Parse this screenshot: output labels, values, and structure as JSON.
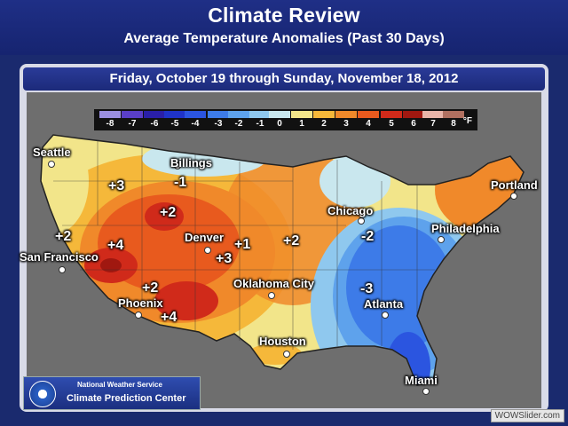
{
  "header": {
    "title": "Climate Review",
    "subtitle": "Average Temperature Anomalies (Past 30 Days)"
  },
  "date_range": "Friday, October 19 through Sunday, November 18, 2012",
  "legend": {
    "unit": "°F",
    "entries": [
      {
        "label": "-8",
        "color": "#9b8fe0"
      },
      {
        "label": "-7",
        "color": "#5a3fc8"
      },
      {
        "label": "-6",
        "color": "#2a1fa8"
      },
      {
        "label": "-5",
        "color": "#1f33c8"
      },
      {
        "label": "-4",
        "color": "#2b55e0"
      },
      {
        "label": "-3",
        "color": "#3d7be8"
      },
      {
        "label": "-2",
        "color": "#5ea2ec"
      },
      {
        "label": "-1",
        "color": "#8fc8ee"
      },
      {
        "label": "0",
        "color": "#c9e7ee"
      },
      {
        "label": "1",
        "color": "#f2e58a"
      },
      {
        "label": "2",
        "color": "#f5b83a"
      },
      {
        "label": "3",
        "color": "#f0892a"
      },
      {
        "label": "4",
        "color": "#e85a1e"
      },
      {
        "label": "5",
        "color": "#d02a1a"
      },
      {
        "label": "6",
        "color": "#a01810"
      },
      {
        "label": "7",
        "color": "#e8b4a8"
      },
      {
        "label": "8",
        "color": "#b07060"
      }
    ]
  },
  "cities": [
    {
      "name": "Seattle"
    },
    {
      "name": "Billings"
    },
    {
      "name": "Portland"
    },
    {
      "name": "Chicago"
    },
    {
      "name": "Philadelphia"
    },
    {
      "name": "San Francisco"
    },
    {
      "name": "Denver"
    },
    {
      "name": "Oklahoma City"
    },
    {
      "name": "Phoenix"
    },
    {
      "name": "Atlanta"
    },
    {
      "name": "Houston"
    },
    {
      "name": "Miami"
    }
  ],
  "anomalies": [
    "+3",
    "-1",
    "+2",
    "+2",
    "+4",
    "+1",
    "+3",
    "+2",
    "-2",
    "+2",
    "+4",
    "-3"
  ],
  "footer": {
    "agency": "National Weather Service",
    "center": "Climate Prediction Center"
  },
  "watermark": "WOWSlider.com"
}
